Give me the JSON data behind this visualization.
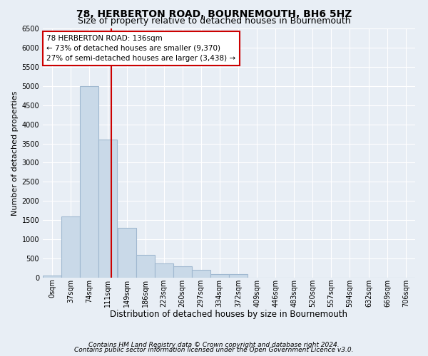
{
  "title1": "78, HERBERTON ROAD, BOURNEMOUTH, BH6 5HZ",
  "title2": "Size of property relative to detached houses in Bournemouth",
  "xlabel": "Distribution of detached houses by size in Bournemouth",
  "ylabel": "Number of detached properties",
  "footnote1": "Contains HM Land Registry data © Crown copyright and database right 2024.",
  "footnote2": "Contains public sector information licensed under the Open Government Licence v3.0.",
  "bin_edges": [
    0,
    37,
    74,
    111,
    149,
    186,
    223,
    260,
    297,
    334,
    372,
    409,
    446,
    483,
    520,
    557,
    594,
    632,
    669,
    706,
    743
  ],
  "bar_heights": [
    50,
    1600,
    5000,
    3600,
    1300,
    600,
    370,
    300,
    200,
    100,
    100,
    0,
    0,
    0,
    0,
    0,
    0,
    0,
    0,
    0
  ],
  "bar_color": "#c9d9e8",
  "bar_edge_color": "#a0b8d0",
  "property_size": 136,
  "red_line_color": "#cc0000",
  "annotation_line1": "78 HERBERTON ROAD: 136sqm",
  "annotation_line2": "← 73% of detached houses are smaller (9,370)",
  "annotation_line3": "27% of semi-detached houses are larger (3,438) →",
  "annotation_box_color": "#cc0000",
  "ylim": [
    0,
    6500
  ],
  "yticks": [
    0,
    500,
    1000,
    1500,
    2000,
    2500,
    3000,
    3500,
    4000,
    4500,
    5000,
    5500,
    6000,
    6500
  ],
  "background_color": "#e8eef5",
  "plot_bg_color": "#e8eef5",
  "grid_color": "#ffffff",
  "title1_fontsize": 10,
  "title2_fontsize": 9,
  "xlabel_fontsize": 8.5,
  "ylabel_fontsize": 8,
  "tick_fontsize": 7,
  "annot_fontsize": 7.5,
  "footnote_fontsize": 6.5
}
